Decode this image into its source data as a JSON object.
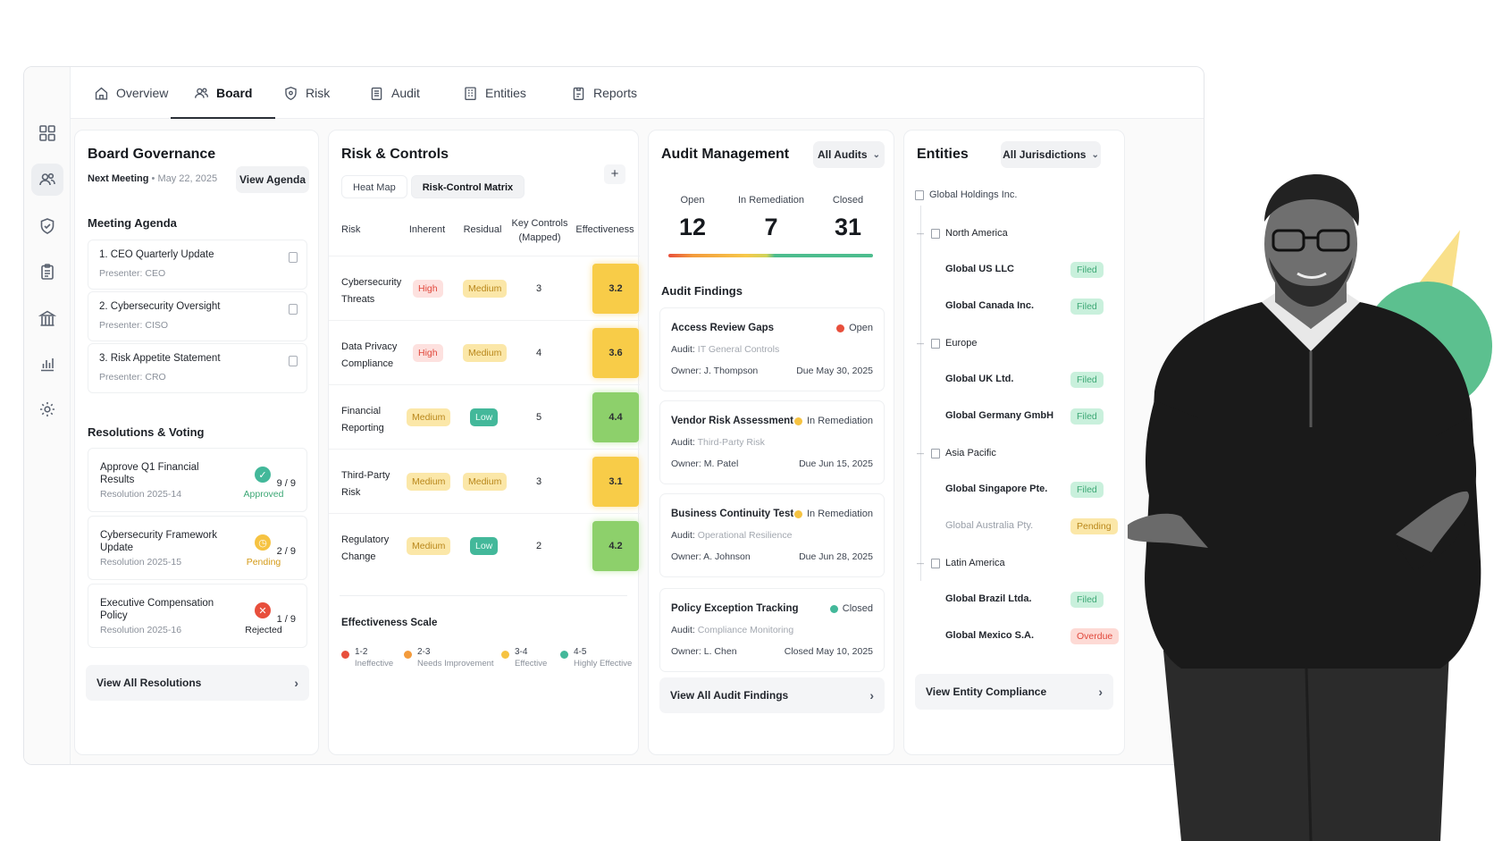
{
  "nav": {
    "tabs": [
      {
        "label": "Overview",
        "icon": "home-icon"
      },
      {
        "label": "Board",
        "icon": "users-icon"
      },
      {
        "label": "Risk",
        "icon": "shield-icon"
      },
      {
        "label": "Audit",
        "icon": "clipboard-icon"
      },
      {
        "label": "Entities",
        "icon": "building-icon"
      },
      {
        "label": "Reports",
        "icon": "report-icon"
      }
    ],
    "active_tab": "Board"
  },
  "sidebar": {
    "icons": [
      "grid-icon",
      "users-icon",
      "shield-icon",
      "clipboard-icon",
      "building-icon",
      "bar-chart-icon",
      "gear-icon"
    ],
    "active": "users-icon"
  },
  "board": {
    "title": "Board Governance",
    "next_meeting_label": "Next Meeting",
    "next_meeting_date": "May 22, 2025",
    "view_agenda": "View Agenda",
    "agenda_title": "Meeting Agenda",
    "agenda": [
      {
        "title": "1. CEO Quarterly Update",
        "presenter": "Presenter: CEO"
      },
      {
        "title": "2. Cybersecurity Oversight",
        "presenter": "Presenter: CISO"
      },
      {
        "title": "3. Risk Appetite Statement",
        "presenter": "Presenter: CRO"
      }
    ],
    "resolutions_title": "Resolutions & Voting",
    "resolutions": [
      {
        "title": "Approve Q1 Financial Results",
        "id": "Resolution 2025-14",
        "status": "Approved",
        "votes": "9 / 9",
        "color": "#43b89a",
        "glyph": "✓"
      },
      {
        "title": "Cybersecurity Framework Update",
        "id": "Resolution 2025-15",
        "status": "Pending",
        "votes": "2 / 9",
        "color": "#f6c342",
        "glyph": "◷"
      },
      {
        "title": "Executive Compensation Policy",
        "id": "Resolution 2025-16",
        "status": "Rejected",
        "votes": "1 / 9",
        "color": "#e84f3c",
        "glyph": "✕"
      }
    ],
    "view_all": "View All Resolutions"
  },
  "risk": {
    "title": "Risk & Controls",
    "tabs": [
      "Heat Map",
      "Risk-Control Matrix"
    ],
    "active_tab": "Risk-Control Matrix",
    "add": "+",
    "headers": {
      "risk": "Risk",
      "inherent": "Inherent",
      "residual": "Residual",
      "key_controls": "Key Controls (Mapped)",
      "effectiveness": "Effectiveness"
    },
    "rows": [
      {
        "risk": "Cybersecurity Threats",
        "inherent": "High",
        "residual": "Medium",
        "controls": "3",
        "effectiveness": "3.2",
        "tone": "y"
      },
      {
        "risk": "Data Privacy Compliance",
        "inherent": "High",
        "residual": "Medium",
        "controls": "4",
        "effectiveness": "3.6",
        "tone": "y"
      },
      {
        "risk": "Financial Reporting",
        "inherent": "Medium",
        "residual": "Low",
        "controls": "5",
        "effectiveness": "4.4",
        "tone": "g"
      },
      {
        "risk": "Third-Party Risk",
        "inherent": "Medium",
        "residual": "Medium",
        "controls": "3",
        "effectiveness": "3.1",
        "tone": "y"
      },
      {
        "risk": "Regulatory Change",
        "inherent": "Medium",
        "residual": "Low",
        "controls": "2",
        "effectiveness": "4.2",
        "tone": "g"
      }
    ],
    "scale_title": "Effectiveness Scale",
    "scale": [
      {
        "range": "1-2",
        "label": "Ineffective",
        "color": "#e84f3c"
      },
      {
        "range": "2-3",
        "label": "Needs Improvement",
        "color": "#f39b3c"
      },
      {
        "range": "3-4",
        "label": "Effective",
        "color": "#f6c342"
      },
      {
        "range": "4-5",
        "label": "Highly Effective",
        "color": "#43b89a"
      }
    ]
  },
  "audit": {
    "title": "Audit Management",
    "filter": "All Audits",
    "stats": [
      {
        "label": "Open",
        "value": "12"
      },
      {
        "label": "In Remediation",
        "value": "7"
      },
      {
        "label": "Closed",
        "value": "31"
      }
    ],
    "findings_title": "Audit Findings",
    "findings": [
      {
        "title": "Access Review Gaps",
        "status": "Open",
        "status_color": "#e84f3c",
        "audit_label": "Audit:",
        "audit": "IT General Controls",
        "owner": "Owner: J. Thompson",
        "date": "Due May 30, 2025"
      },
      {
        "title": "Vendor Risk Assessment",
        "status": "In Remediation",
        "status_color": "#f6c342",
        "audit_label": "Audit:",
        "audit": "Third-Party Risk",
        "owner": "Owner: M. Patel",
        "date": "Due Jun 15, 2025"
      },
      {
        "title": "Business Continuity Test",
        "status": "In Remediation",
        "status_color": "#f6c342",
        "audit_label": "Audit:",
        "audit": "Operational Resilience",
        "owner": "Owner: A. Johnson",
        "date": "Due Jun 28, 2025"
      },
      {
        "title": "Policy Exception Tracking",
        "status": "Closed",
        "status_color": "#43b89a",
        "audit_label": "Audit:",
        "audit": "Compliance Monitoring",
        "owner": "Owner: L. Chen",
        "date": "Closed May 10, 2025"
      }
    ],
    "view_all": "View All Audit Findings"
  },
  "entities": {
    "title": "Entities",
    "filter": "All Jurisdictions",
    "root": "Global Holdings Inc.",
    "regions": [
      {
        "name": "North America",
        "items": [
          {
            "name": "Global US LLC",
            "status": "Filed",
            "kind": "filed"
          },
          {
            "name": "Global Canada Inc.",
            "status": "Filed",
            "kind": "filed"
          }
        ]
      },
      {
        "name": "Europe",
        "items": [
          {
            "name": "Global UK Ltd.",
            "status": "Filed",
            "kind": "filed"
          },
          {
            "name": "Global Germany GmbH",
            "status": "Filed",
            "kind": "filed"
          }
        ]
      },
      {
        "name": "Asia Pacific",
        "items": [
          {
            "name": "Global Singapore Pte.",
            "status": "Filed",
            "kind": "filed"
          },
          {
            "name": "Global Australia Pty.",
            "status": "Pending",
            "kind": "pend"
          }
        ]
      },
      {
        "name": "Latin America",
        "items": [
          {
            "name": "Global Brazil Ltda.",
            "status": "Filed",
            "kind": "filed"
          },
          {
            "name": "Global Mexico S.A.",
            "status": "Overdue",
            "kind": "over"
          }
        ]
      }
    ],
    "view_all": "View Entity Compliance"
  }
}
